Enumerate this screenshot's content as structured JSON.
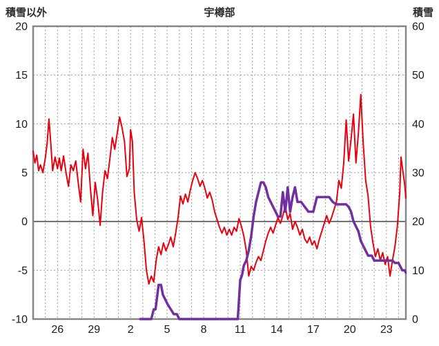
{
  "header": {
    "left_axis_title": "積雪以外",
    "chart_title": "宇樽部",
    "right_axis_title": "積雪"
  },
  "chart_data": {
    "type": "line",
    "title": "宇樽部",
    "left_axis": {
      "label": "積雪以外",
      "min": -10,
      "max": 20,
      "ticks": [
        20,
        15,
        10,
        5,
        0,
        -5,
        -10
      ]
    },
    "right_axis": {
      "label": "積雪",
      "min": 0,
      "max": 60,
      "ticks": [
        60,
        50,
        40,
        30,
        20,
        10,
        0
      ]
    },
    "x_axis": {
      "min": 0,
      "max": 30.6,
      "minor_grid_step": 1,
      "tick_positions": [
        2,
        5,
        8,
        11,
        14,
        17,
        20,
        23,
        26,
        29
      ],
      "tick_labels": [
        "26",
        "29",
        "2",
        "5",
        "8",
        "11",
        "14",
        "17",
        "20",
        "23"
      ]
    },
    "grid": {
      "color": "#999999",
      "dash": "2 3"
    },
    "zero_line": {
      "value": 0,
      "axis": "left",
      "color": "#4d4d4d"
    },
    "frame_color": "#878787",
    "series": [
      {
        "name": "積雪以外",
        "axis": "left",
        "color": "#e8000d",
        "width": 2,
        "points": [
          [
            0,
            7.2
          ],
          [
            0.15,
            6
          ],
          [
            0.3,
            6.8
          ],
          [
            0.45,
            5.2
          ],
          [
            0.6,
            5.8
          ],
          [
            0.8,
            5
          ],
          [
            1,
            6.5
          ],
          [
            1.15,
            8
          ],
          [
            1.3,
            10.5
          ],
          [
            1.45,
            8
          ],
          [
            1.6,
            5.2
          ],
          [
            1.8,
            6.6
          ],
          [
            2,
            5.4
          ],
          [
            2.15,
            6.5
          ],
          [
            2.3,
            5.2
          ],
          [
            2.5,
            6.7
          ],
          [
            2.7,
            5
          ],
          [
            2.9,
            3.6
          ],
          [
            3.1,
            5.8
          ],
          [
            3.3,
            5.2
          ],
          [
            3.5,
            6.2
          ],
          [
            3.7,
            4
          ],
          [
            3.9,
            2
          ],
          [
            4.1,
            7.4
          ],
          [
            4.3,
            5.4
          ],
          [
            4.5,
            7
          ],
          [
            4.7,
            3.4
          ],
          [
            4.9,
            0.6
          ],
          [
            5.1,
            4
          ],
          [
            5.3,
            2.2
          ],
          [
            5.5,
            -0.4
          ],
          [
            5.7,
            3
          ],
          [
            5.9,
            5.2
          ],
          [
            6.1,
            4.4
          ],
          [
            6.3,
            6.4
          ],
          [
            6.5,
            8.6
          ],
          [
            6.7,
            7.4
          ],
          [
            6.9,
            9
          ],
          [
            7.1,
            10.7
          ],
          [
            7.3,
            9.6
          ],
          [
            7.5,
            8.2
          ],
          [
            7.7,
            4.6
          ],
          [
            7.9,
            5.4
          ],
          [
            8,
            9.4
          ],
          [
            8.15,
            8.2
          ],
          [
            8.3,
            3
          ],
          [
            8.5,
            0.2
          ],
          [
            8.7,
            -1
          ],
          [
            8.9,
            0.4
          ],
          [
            9.1,
            -2
          ],
          [
            9.3,
            -5
          ],
          [
            9.5,
            -6.4
          ],
          [
            9.7,
            -5.6
          ],
          [
            9.9,
            -6.2
          ],
          [
            10.1,
            -4
          ],
          [
            10.3,
            -2.6
          ],
          [
            10.5,
            -3.4
          ],
          [
            10.7,
            -2.2
          ],
          [
            10.9,
            -3
          ],
          [
            11.1,
            -2.4
          ],
          [
            11.3,
            -1.6
          ],
          [
            11.5,
            -2.6
          ],
          [
            11.7,
            -1.2
          ],
          [
            11.9,
            0.4
          ],
          [
            12.1,
            2.6
          ],
          [
            12.3,
            1.8
          ],
          [
            12.5,
            2.8
          ],
          [
            12.7,
            2
          ],
          [
            12.9,
            3.2
          ],
          [
            13.1,
            4.2
          ],
          [
            13.3,
            5
          ],
          [
            13.5,
            4.4
          ],
          [
            13.7,
            3.6
          ],
          [
            13.9,
            4.2
          ],
          [
            14.1,
            3.4
          ],
          [
            14.3,
            2.4
          ],
          [
            14.5,
            3
          ],
          [
            14.7,
            2.2
          ],
          [
            14.9,
            1
          ],
          [
            15.1,
            0.2
          ],
          [
            15.3,
            -0.6
          ],
          [
            15.5,
            -1.2
          ],
          [
            15.7,
            -0.6
          ],
          [
            15.9,
            -1.4
          ],
          [
            16.1,
            -0.8
          ],
          [
            16.3,
            -1.4
          ],
          [
            16.5,
            -0.6
          ],
          [
            16.7,
            -1
          ],
          [
            16.9,
            0.3
          ],
          [
            17.1,
            -0.5
          ],
          [
            17.3,
            -1.5
          ],
          [
            17.5,
            -3
          ],
          [
            17.7,
            -5.6
          ],
          [
            17.9,
            -4.6
          ],
          [
            18.1,
            -5
          ],
          [
            18.3,
            -4.2
          ],
          [
            18.5,
            -3.6
          ],
          [
            18.7,
            -4
          ],
          [
            18.9,
            -3
          ],
          [
            19.1,
            -2
          ],
          [
            19.3,
            -1.2
          ],
          [
            19.5,
            -0.6
          ],
          [
            19.7,
            -1.2
          ],
          [
            19.9,
            -0.4
          ],
          [
            20.1,
            0.4
          ],
          [
            20.3,
            -0.2
          ],
          [
            20.5,
            0.6
          ],
          [
            20.7,
            1.6
          ],
          [
            20.9,
            0.2
          ],
          [
            21.1,
            0.8
          ],
          [
            21.3,
            -0.8
          ],
          [
            21.5,
            0
          ],
          [
            21.7,
            -0.6
          ],
          [
            21.9,
            -1.4
          ],
          [
            22.1,
            -0.8
          ],
          [
            22.3,
            -1.8
          ],
          [
            22.5,
            -2.2
          ],
          [
            22.7,
            -1.6
          ],
          [
            22.9,
            -2.4
          ],
          [
            23.1,
            -2
          ],
          [
            23.3,
            -2.8
          ],
          [
            23.5,
            -1.8
          ],
          [
            23.7,
            -1
          ],
          [
            23.9,
            -0.2
          ],
          [
            24.1,
            0.6
          ],
          [
            24.3,
            -0.2
          ],
          [
            24.5,
            0.4
          ],
          [
            24.7,
            1.2
          ],
          [
            24.9,
            2
          ],
          [
            25.1,
            4.2
          ],
          [
            25.3,
            3.4
          ],
          [
            25.5,
            6
          ],
          [
            25.7,
            10.4
          ],
          [
            25.9,
            6.2
          ],
          [
            26.1,
            8.4
          ],
          [
            26.3,
            11
          ],
          [
            26.5,
            6
          ],
          [
            26.7,
            9
          ],
          [
            26.9,
            13
          ],
          [
            27.1,
            8
          ],
          [
            27.3,
            4.2
          ],
          [
            27.5,
            2.6
          ],
          [
            27.7,
            -0.5
          ],
          [
            27.9,
            -2.2
          ],
          [
            28.1,
            -3.6
          ],
          [
            28.3,
            -2.8
          ],
          [
            28.5,
            -4
          ],
          [
            28.7,
            -3.2
          ],
          [
            28.9,
            -4.4
          ],
          [
            29.1,
            -3.6
          ],
          [
            29.3,
            -5.6
          ],
          [
            29.5,
            -4
          ],
          [
            29.7,
            -2.6
          ],
          [
            29.9,
            -0.5
          ],
          [
            30.1,
            3
          ],
          [
            30.2,
            6.6
          ],
          [
            30.35,
            5.2
          ],
          [
            30.5,
            3.8
          ],
          [
            30.6,
            2.4
          ]
        ]
      },
      {
        "name": "積雪",
        "axis": "right",
        "color": "#7030a0",
        "width": 3.5,
        "points": [
          [
            8.8,
            0
          ],
          [
            9.7,
            0
          ],
          [
            9.9,
            2
          ],
          [
            10.05,
            2
          ],
          [
            10.15,
            4
          ],
          [
            10.3,
            7
          ],
          [
            10.5,
            7
          ],
          [
            10.65,
            5
          ],
          [
            10.85,
            4
          ],
          [
            11.05,
            3
          ],
          [
            11.3,
            2
          ],
          [
            11.55,
            1
          ],
          [
            11.8,
            1
          ],
          [
            12,
            0
          ],
          [
            16.8,
            0
          ],
          [
            16.9,
            4
          ],
          [
            17,
            8
          ],
          [
            17.15,
            9
          ],
          [
            17.3,
            11
          ],
          [
            17.5,
            12
          ],
          [
            17.7,
            14
          ],
          [
            17.9,
            17
          ],
          [
            18.1,
            21
          ],
          [
            18.3,
            24
          ],
          [
            18.5,
            26
          ],
          [
            18.7,
            28
          ],
          [
            18.9,
            28
          ],
          [
            19.1,
            27
          ],
          [
            19.3,
            25
          ],
          [
            19.5,
            24
          ],
          [
            19.7,
            23
          ],
          [
            19.9,
            22
          ],
          [
            20.1,
            21
          ],
          [
            20.3,
            21
          ],
          [
            20.5,
            26
          ],
          [
            20.7,
            22
          ],
          [
            20.9,
            27
          ],
          [
            21.1,
            22
          ],
          [
            21.3,
            25
          ],
          [
            21.5,
            27
          ],
          [
            21.7,
            24
          ],
          [
            22,
            24
          ],
          [
            22.3,
            23
          ],
          [
            22.6,
            22
          ],
          [
            23,
            22
          ],
          [
            23.3,
            25
          ],
          [
            24.3,
            25
          ],
          [
            24.6,
            24
          ],
          [
            24.9,
            23.5
          ],
          [
            25.7,
            23.5
          ],
          [
            25.9,
            23
          ],
          [
            26.1,
            22
          ],
          [
            26.3,
            20
          ],
          [
            26.5,
            19
          ],
          [
            26.7,
            18
          ],
          [
            26.9,
            16
          ],
          [
            27.1,
            15
          ],
          [
            27.3,
            14
          ],
          [
            27.5,
            13
          ],
          [
            27.8,
            13
          ],
          [
            28,
            12
          ],
          [
            29.5,
            12
          ],
          [
            29.7,
            11.5
          ],
          [
            30,
            11.5
          ],
          [
            30.1,
            11
          ],
          [
            30.3,
            10
          ],
          [
            30.5,
            10
          ],
          [
            30.6,
            9.5
          ]
        ]
      }
    ]
  }
}
